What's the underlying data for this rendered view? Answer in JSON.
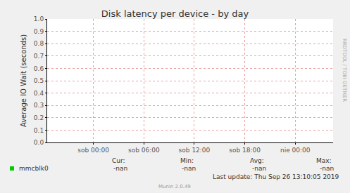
{
  "chart_data": {
    "type": "line",
    "title": "Disk latency per device - by day",
    "y_label": "Average IO Wait (seconds)",
    "categories": [
      null,
      null,
      null,
      null,
      null,
      "sob 00:00",
      null,
      null,
      null,
      null,
      null,
      "sob 06:00",
      null,
      null,
      null,
      null,
      null,
      "sob 12:00",
      null,
      null,
      null,
      null,
      null,
      "sob 18:00",
      null,
      null,
      null,
      null,
      null,
      "nie 00:00",
      null,
      null,
      null,
      null
    ],
    "series": [
      {
        "name": "mmcblk0",
        "color": "#00cc00",
        "values": [
          null,
          null,
          null,
          null,
          null,
          null,
          null,
          null,
          null,
          null,
          null,
          null,
          null,
          null,
          null,
          null,
          null,
          null,
          null,
          null,
          null,
          null,
          null,
          null,
          null,
          null,
          null,
          null,
          null,
          null,
          null,
          null,
          null,
          null
        ],
        "stats": [
          "-nan",
          "-nan",
          "-nan",
          "-nan"
        ]
      }
    ],
    "stat_labels": [
      "Cur:",
      "Min:",
      "Avg:",
      "Max:"
    ],
    "ylim": [
      0,
      1
    ],
    "yticks": [
      {
        "value": 0,
        "label": "0.0"
      },
      {
        "value": 0.1,
        "label": "0.1"
      },
      {
        "value": 0.2,
        "label": "0.2"
      },
      {
        "value": 0.3,
        "label": "0.3"
      },
      {
        "value": 0.4,
        "label": "0.4"
      },
      {
        "value": 0.5,
        "label": "0.5"
      },
      {
        "value": 0.6,
        "label": "0.6"
      },
      {
        "value": 0.7,
        "label": "0.7"
      },
      {
        "value": 0.8,
        "label": "0.8"
      },
      {
        "value": 0.9,
        "label": "0.9"
      },
      {
        "value": 1,
        "label": "1.0"
      }
    ],
    "grid": true,
    "footer": [
      "Last update: Thu Sep 26 13:10:05 2019",
      "Munin 2.0.49"
    ],
    "watermark": "RRDTOOL / TOBI OETIKER"
  }
}
